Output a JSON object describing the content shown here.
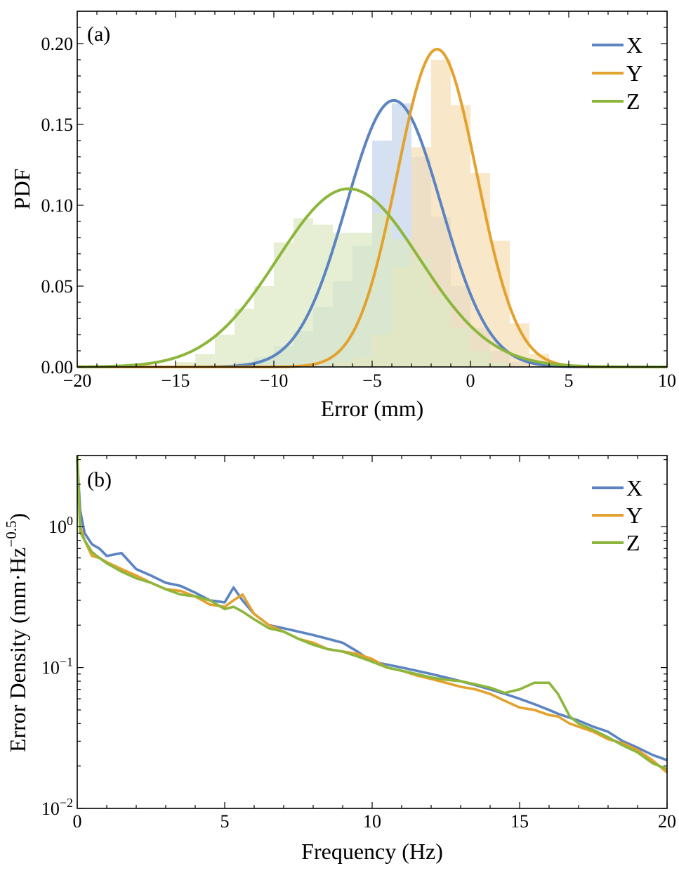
{
  "chart_data": [
    {
      "type": "histogram+line",
      "panel_label": "(a)",
      "xlabel": "Error (mm)",
      "ylabel": "PDF",
      "xlim": [
        -20,
        10
      ],
      "ylim": [
        0,
        0.22
      ],
      "x_ticks": [
        -20,
        -15,
        -10,
        -5,
        0,
        5,
        10
      ],
      "x_tick_labels": [
        "−20",
        "−15",
        "−10",
        "−5",
        "0",
        "5",
        "10"
      ],
      "y_ticks": [
        0,
        0.05,
        0.1,
        0.15,
        0.2
      ],
      "y_tick_labels": [
        "0.00",
        "0.05",
        "0.10",
        "0.15",
        "0.20"
      ],
      "bin_width": 1,
      "series": [
        {
          "name": "X",
          "color": "#5B84C1",
          "fill_color": "#C5D4EA",
          "fit": {
            "distribution": "normal",
            "mean": -3.9,
            "sd": 2.42
          },
          "bins": [
            {
              "x0": -12,
              "y": 0.003
            },
            {
              "x0": -11,
              "y": 0.006
            },
            {
              "x0": -10,
              "y": 0.013
            },
            {
              "x0": -9,
              "y": 0.022
            },
            {
              "x0": -8,
              "y": 0.037
            },
            {
              "x0": -7,
              "y": 0.053
            },
            {
              "x0": -6,
              "y": 0.075
            },
            {
              "x0": -5,
              "y": 0.14
            },
            {
              "x0": -4,
              "y": 0.163
            },
            {
              "x0": -3,
              "y": 0.13
            },
            {
              "x0": -2,
              "y": 0.093
            },
            {
              "x0": -1,
              "y": 0.05
            },
            {
              "x0": 0,
              "y": 0.024
            },
            {
              "x0": 1,
              "y": 0.01
            },
            {
              "x0": 2,
              "y": 0.003
            }
          ]
        },
        {
          "name": "Y",
          "color": "#E3A22F",
          "fill_color": "#F7DEB4",
          "fit": {
            "distribution": "normal",
            "mean": -1.7,
            "sd": 2.03
          },
          "bins": [
            {
              "x0": -7,
              "y": 0.003
            },
            {
              "x0": -6,
              "y": 0.006
            },
            {
              "x0": -5,
              "y": 0.02
            },
            {
              "x0": -4,
              "y": 0.062
            },
            {
              "x0": -3,
              "y": 0.136
            },
            {
              "x0": -2,
              "y": 0.19
            },
            {
              "x0": -1,
              "y": 0.162
            },
            {
              "x0": 0,
              "y": 0.12
            },
            {
              "x0": 1,
              "y": 0.078
            },
            {
              "x0": 2,
              "y": 0.027
            },
            {
              "x0": 3,
              "y": 0.008
            }
          ]
        },
        {
          "name": "Z",
          "color": "#8DB63C",
          "fill_color": "#DDE9C4",
          "fit": {
            "distribution": "normal",
            "mean": -6.2,
            "sd": 3.62
          },
          "bins": [
            {
              "x0": -15,
              "y": 0.003
            },
            {
              "x0": -14,
              "y": 0.008
            },
            {
              "x0": -13,
              "y": 0.02
            },
            {
              "x0": -12,
              "y": 0.036
            },
            {
              "x0": -11,
              "y": 0.05
            },
            {
              "x0": -10,
              "y": 0.077
            },
            {
              "x0": -9,
              "y": 0.092
            },
            {
              "x0": -8,
              "y": 0.088
            },
            {
              "x0": -7,
              "y": 0.083
            },
            {
              "x0": -6,
              "y": 0.083
            },
            {
              "x0": -5,
              "y": 0.095
            },
            {
              "x0": -4,
              "y": 0.079
            },
            {
              "x0": -3,
              "y": 0.067
            },
            {
              "x0": -2,
              "y": 0.045
            },
            {
              "x0": -1,
              "y": 0.024
            },
            {
              "x0": 0,
              "y": 0.01
            },
            {
              "x0": 1,
              "y": 0.003
            }
          ]
        }
      ],
      "legend": [
        "X",
        "Y",
        "Z"
      ],
      "legend_position": "top-right"
    },
    {
      "type": "line",
      "panel_label": "(b)",
      "xlabel": "Frequency (Hz)",
      "ylabel_parts": [
        "Error Density (mm·Hz",
        "−0.5",
        ")"
      ],
      "xlim": [
        0,
        20
      ],
      "ylim": [
        0.01,
        3.2
      ],
      "yscale": "log",
      "x_ticks": [
        0,
        5,
        10,
        15,
        20
      ],
      "x_tick_labels": [
        "0",
        "5",
        "10",
        "15",
        "20"
      ],
      "y_ticks": [
        0.01,
        0.1,
        1
      ],
      "y_tick_labels": [
        {
          "base": "10",
          "exp": "−2"
        },
        {
          "base": "10",
          "exp": "−1"
        },
        {
          "base": "10",
          "exp": "0"
        }
      ],
      "x": [
        0,
        0.1,
        0.25,
        0.5,
        0.75,
        1,
        1.5,
        2,
        2.5,
        3,
        3.5,
        4,
        4.5,
        5,
        5.3,
        5.6,
        6,
        6.5,
        7,
        7.5,
        8,
        8.5,
        9,
        9.5,
        10,
        10.5,
        11,
        11.5,
        12,
        12.5,
        13,
        13.5,
        14,
        14.5,
        15,
        15.5,
        16,
        16.3,
        16.7,
        17,
        17.5,
        18,
        18.5,
        19,
        19.5,
        20
      ],
      "series": [
        {
          "name": "X",
          "color": "#5B84C1",
          "values": [
            3.0,
            1.3,
            0.9,
            0.75,
            0.7,
            0.62,
            0.65,
            0.5,
            0.45,
            0.4,
            0.38,
            0.34,
            0.3,
            0.29,
            0.37,
            0.3,
            0.24,
            0.2,
            0.19,
            0.18,
            0.17,
            0.16,
            0.15,
            0.13,
            0.11,
            0.105,
            0.1,
            0.095,
            0.09,
            0.085,
            0.08,
            0.075,
            0.07,
            0.065,
            0.06,
            0.055,
            0.05,
            0.047,
            0.044,
            0.042,
            0.038,
            0.035,
            0.03,
            0.027,
            0.024,
            0.022
          ]
        },
        {
          "name": "Y",
          "color": "#E3A22F",
          "values": [
            3.0,
            1.0,
            0.8,
            0.62,
            0.6,
            0.56,
            0.5,
            0.45,
            0.4,
            0.36,
            0.35,
            0.32,
            0.28,
            0.27,
            0.3,
            0.33,
            0.24,
            0.2,
            0.18,
            0.16,
            0.15,
            0.135,
            0.13,
            0.125,
            0.115,
            0.1,
            0.095,
            0.088,
            0.083,
            0.078,
            0.073,
            0.07,
            0.065,
            0.058,
            0.052,
            0.05,
            0.046,
            0.045,
            0.04,
            0.038,
            0.035,
            0.031,
            0.029,
            0.026,
            0.022,
            0.018
          ]
        },
        {
          "name": "Z",
          "color": "#8DB63C",
          "values": [
            3.2,
            0.92,
            0.8,
            0.66,
            0.6,
            0.55,
            0.48,
            0.43,
            0.4,
            0.36,
            0.33,
            0.32,
            0.3,
            0.26,
            0.27,
            0.25,
            0.22,
            0.19,
            0.18,
            0.16,
            0.145,
            0.135,
            0.13,
            0.12,
            0.11,
            0.1,
            0.095,
            0.09,
            0.085,
            0.082,
            0.08,
            0.076,
            0.072,
            0.066,
            0.07,
            0.078,
            0.078,
            0.065,
            0.045,
            0.04,
            0.036,
            0.032,
            0.028,
            0.025,
            0.021,
            0.019
          ]
        }
      ],
      "legend": [
        "X",
        "Y",
        "Z"
      ],
      "legend_position": "top-right"
    }
  ]
}
